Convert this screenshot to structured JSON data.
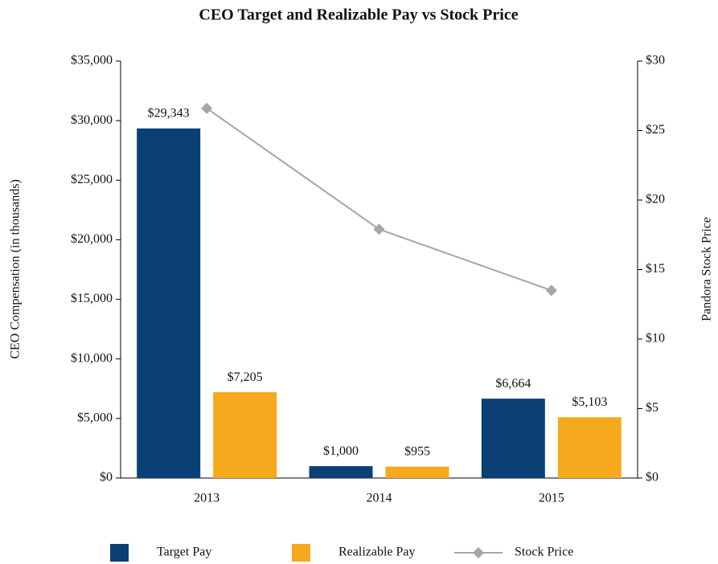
{
  "chart_data": {
    "type": "bar_line",
    "title": "CEO Target and Realizable Pay vs Stock Price",
    "y_label": "CEO Compensation (in thousands)",
    "y2_label": "Pandora Stock Price",
    "categories": [
      "2013",
      "2014",
      "2015"
    ],
    "series": [
      {
        "name": "Target Pay",
        "type": "bar",
        "color": "#0b4077",
        "values": [
          29343,
          1000,
          6664
        ],
        "value_labels": [
          "$29,343",
          "$1,000",
          "$6,664"
        ]
      },
      {
        "name": "Realizable Pay",
        "type": "bar",
        "color": "#f6a91c",
        "values": [
          7205,
          955,
          5103
        ],
        "value_labels": [
          "$7,205",
          "$955",
          "$5,103"
        ]
      },
      {
        "name": "Stock Price",
        "type": "line",
        "axis": "y2",
        "color": "#a6a6a6",
        "values": [
          26.6,
          17.9,
          13.5
        ]
      }
    ],
    "ylim": [
      0,
      35000
    ],
    "yticks": [
      {
        "value": 0,
        "label": "$0"
      },
      {
        "value": 5000,
        "label": "$5,000"
      },
      {
        "value": 10000,
        "label": "$10,000"
      },
      {
        "value": 15000,
        "label": "$15,000"
      },
      {
        "value": 20000,
        "label": "$20,000"
      },
      {
        "value": 25000,
        "label": "$25,000"
      },
      {
        "value": 30000,
        "label": "$30,000"
      },
      {
        "value": 35000,
        "label": "$35,000"
      }
    ],
    "y2lim": [
      0,
      30
    ],
    "y2ticks": [
      {
        "value": 0,
        "label": "$0"
      },
      {
        "value": 5,
        "label": "$5"
      },
      {
        "value": 10,
        "label": "$10"
      },
      {
        "value": 15,
        "label": "$15"
      },
      {
        "value": 20,
        "label": "$20"
      },
      {
        "value": 25,
        "label": "$25"
      },
      {
        "value": 30,
        "label": "$30"
      }
    ],
    "legend": "bottom"
  }
}
